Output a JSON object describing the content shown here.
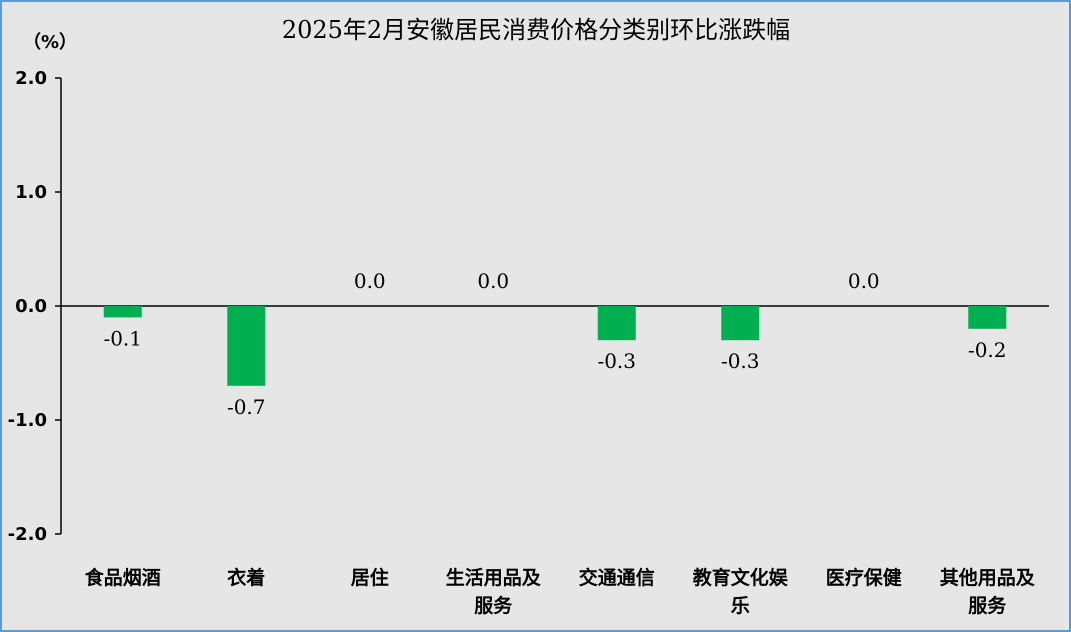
{
  "chart_data": {
    "type": "bar",
    "title": "2025年2月安徽居民消费价格分类别环比涨跌幅",
    "unit_label": "（%）",
    "categories": [
      [
        "食品烟酒"
      ],
      [
        "衣着"
      ],
      [
        "居住"
      ],
      [
        "生活用品及",
        "服务"
      ],
      [
        "交通通信"
      ],
      [
        "教育文化娱",
        "乐"
      ],
      [
        "医疗保健"
      ],
      [
        "其他用品及",
        "服务"
      ]
    ],
    "values": [
      -0.1,
      -0.7,
      0.0,
      0.0,
      -0.3,
      -0.3,
      0.0,
      -0.2
    ],
    "value_labels": [
      "-0.1",
      "-0.7",
      "0.0",
      "0.0",
      "-0.3",
      "-0.3",
      "0.0",
      "-0.2"
    ],
    "yticks": [
      2.0,
      1.0,
      0.0,
      -1.0,
      -2.0
    ],
    "ytick_labels": [
      "2.0",
      "1.0",
      "0.0",
      "-1.0",
      "-2.0"
    ],
    "ylim": [
      -2.0,
      2.0
    ],
    "grid": false,
    "legend": "none",
    "colors": {
      "bar": "#00b050",
      "background": "#e6e6e6",
      "border": "#5b9bd5"
    }
  }
}
